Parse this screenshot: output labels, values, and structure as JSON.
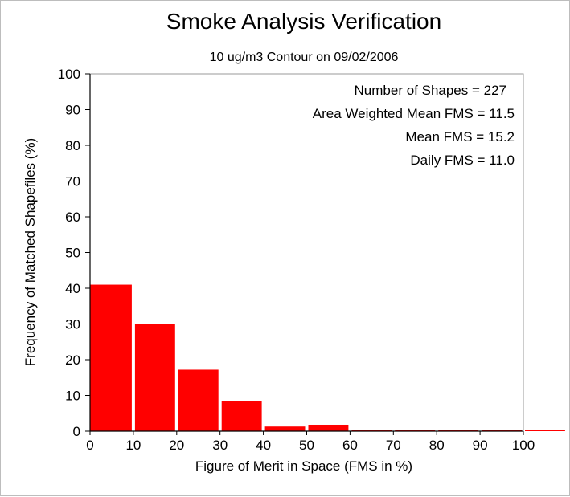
{
  "chart_data": {
    "type": "bar",
    "title": "Smoke Analysis Verification",
    "subtitle": "10 ug/m3 Contour on 09/02/2006",
    "xlabel": "Figure of Merit in Space (FMS in %)",
    "ylabel": "Frequency of Matched Shapefiles (%)",
    "xlim": [
      0,
      110
    ],
    "ylim": [
      0,
      100
    ],
    "x_ticks": [
      "0",
      "10",
      "20",
      "30",
      "40",
      "50",
      "60",
      "70",
      "80",
      "90",
      "100"
    ],
    "y_ticks": [
      "0",
      "10",
      "20",
      "30",
      "40",
      "50",
      "60",
      "70",
      "80",
      "90",
      "100"
    ],
    "bins": [
      {
        "from": 0,
        "to": 10,
        "value": 41.0
      },
      {
        "from": 10,
        "to": 20,
        "value": 30.0
      },
      {
        "from": 20,
        "to": 30,
        "value": 17.2
      },
      {
        "from": 30,
        "to": 40,
        "value": 8.4
      },
      {
        "from": 40,
        "to": 50,
        "value": 1.3
      },
      {
        "from": 50,
        "to": 60,
        "value": 1.8
      },
      {
        "from": 60,
        "to": 70,
        "value": 0.4
      },
      {
        "from": 70,
        "to": 80,
        "value": 0.1
      },
      {
        "from": 80,
        "to": 90,
        "value": 0.1
      },
      {
        "from": 90,
        "to": 100,
        "value": 0.1
      },
      {
        "from": 100,
        "to": 110,
        "value": 0.1
      }
    ],
    "bar_color": "#ff0000",
    "grid": false,
    "annotations": [
      "Number of Shapes = 227",
      "Area Weighted Mean FMS = 11.5",
      "Mean FMS = 15.2",
      "Daily FMS = 11.0"
    ],
    "annotation_placement": "top-right"
  }
}
